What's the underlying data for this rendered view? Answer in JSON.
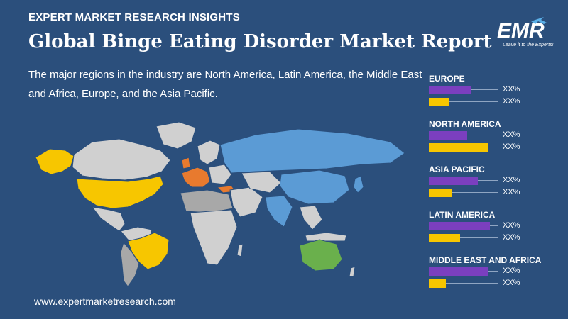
{
  "header": {
    "kicker": "EXPERT MARKET RESEARCH INSIGHTS",
    "title": "Global Binge Eating Disorder Market Report"
  },
  "intro_text": "The major regions in the industry are North America, Latin America, the Middle East and Africa, Europe, and the Asia Pacific.",
  "logo": {
    "brand": "EMR",
    "tagline": "Leave it to the Experts!"
  },
  "website": "www.expertmarketresearch.com",
  "colors": {
    "background": "#2b4f7c",
    "purple_bar": "#7b3fbf",
    "yellow_bar": "#f7c600",
    "map_north_america": "#f7c600",
    "map_latin_america": "#f7c600",
    "map_europe": "#e87a2e",
    "map_asia_pacific": "#5b9bd5",
    "map_oceania": "#6ab04c",
    "map_other": "#d0d0d0"
  },
  "regions": [
    {
      "name": "EUROPE",
      "bars": [
        {
          "color": "purple",
          "fraction": 0.6,
          "label": "XX%"
        },
        {
          "color": "yellow",
          "fraction": 0.3,
          "label": "XX%"
        }
      ]
    },
    {
      "name": "NORTH AMERICA",
      "bars": [
        {
          "color": "purple",
          "fraction": 0.55,
          "label": "XX%"
        },
        {
          "color": "yellow",
          "fraction": 0.85,
          "label": "XX%"
        }
      ]
    },
    {
      "name": "ASIA PACIFIC",
      "bars": [
        {
          "color": "purple",
          "fraction": 0.7,
          "label": "XX%"
        },
        {
          "color": "yellow",
          "fraction": 0.33,
          "label": "XX%"
        }
      ]
    },
    {
      "name": "LATIN AMERICA",
      "bars": [
        {
          "color": "purple",
          "fraction": 0.88,
          "label": "XX%"
        },
        {
          "color": "yellow",
          "fraction": 0.45,
          "label": "XX%"
        }
      ]
    },
    {
      "name": "MIDDLE EAST AND AFRICA",
      "bars": [
        {
          "color": "purple",
          "fraction": 0.85,
          "label": "XX%"
        },
        {
          "color": "yellow",
          "fraction": 0.24,
          "label": "XX%"
        }
      ]
    }
  ]
}
